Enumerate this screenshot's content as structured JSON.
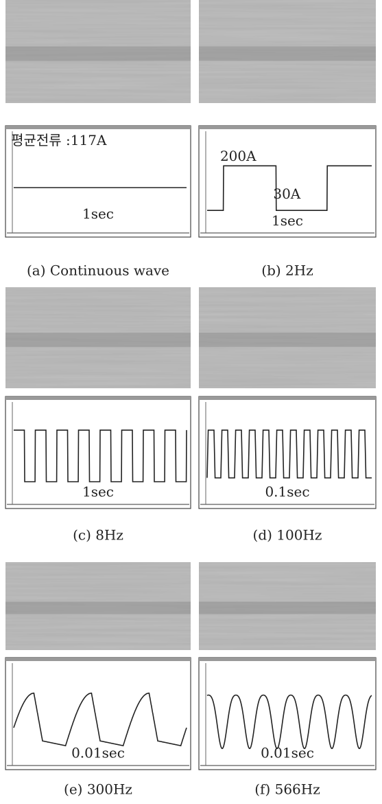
{
  "panels": [
    {
      "caption": "(a) Continuous wave",
      "annotations": [
        "평균전류 :117A",
        "1sec"
      ]
    },
    {
      "caption": "(b) 2Hz",
      "annotations": [
        "200A",
        "30A",
        "1sec"
      ]
    },
    {
      "caption": "(c) 8Hz",
      "annotations": [
        "1sec"
      ]
    },
    {
      "caption": "(d) 100Hz",
      "annotations": [
        "0.1sec"
      ]
    },
    {
      "caption": "(e) 300Hz",
      "annotations": [
        "0.01sec"
      ]
    },
    {
      "caption": "(f) 566Hz",
      "annotations": [
        "0.01sec"
      ]
    }
  ]
}
